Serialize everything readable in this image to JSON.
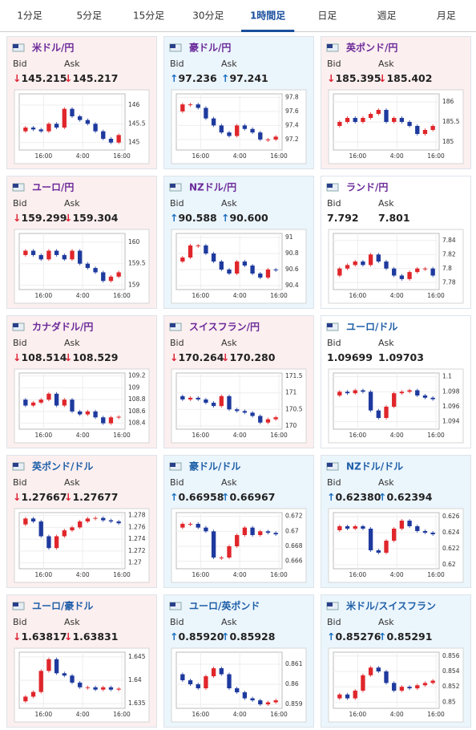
{
  "tabs": {
    "items": [
      "1分足",
      "5分足",
      "15分足",
      "30分足",
      "1時間足",
      "日足",
      "週足",
      "月足"
    ],
    "active": 4
  },
  "labels": {
    "bid": "Bid",
    "ask": "Ask",
    "xlabels": [
      "16:00",
      "4:00",
      "16:00"
    ]
  },
  "cards": [
    {
      "name": "米ドル/円",
      "bid": "145.215",
      "ask": "145.217",
      "trend": "down",
      "group": "yen",
      "ylim": [
        144.8,
        146.3
      ],
      "yticks": [
        145,
        145.5,
        146
      ],
      "values": [
        145.3,
        145.4,
        145.35,
        145.3,
        145.5,
        145.4,
        145.9,
        145.7,
        145.6,
        145.5,
        145.3,
        145.1,
        145.0,
        145.2
      ]
    },
    {
      "name": "豪ドル/円",
      "bid": "97.236",
      "ask": "97.241",
      "trend": "up",
      "group": "yen",
      "ylim": [
        97.05,
        97.85
      ],
      "yticks": [
        97.2,
        97.4,
        97.6,
        97.8
      ],
      "values": [
        97.6,
        97.7,
        97.7,
        97.65,
        97.5,
        97.4,
        97.3,
        97.25,
        97.4,
        97.35,
        97.3,
        97.2,
        97.2,
        97.24
      ]
    },
    {
      "name": "英ポンド/円",
      "bid": "185.395",
      "ask": "185.402",
      "trend": "down",
      "group": "yen",
      "ylim": [
        184.8,
        186.2
      ],
      "yticks": [
        185,
        185.5,
        186
      ],
      "values": [
        185.4,
        185.5,
        185.6,
        185.5,
        185.6,
        185.7,
        185.8,
        185.5,
        185.6,
        185.5,
        185.4,
        185.2,
        185.3,
        185.4
      ]
    },
    {
      "name": "ユーロ/円",
      "bid": "159.299",
      "ask": "159.304",
      "trend": "down",
      "group": "yen",
      "ylim": [
        158.9,
        160.2
      ],
      "yticks": [
        159,
        159.5,
        160
      ],
      "values": [
        159.7,
        159.8,
        159.7,
        159.6,
        159.8,
        159.7,
        159.6,
        159.8,
        159.5,
        159.4,
        159.3,
        159.1,
        159.2,
        159.3
      ]
    },
    {
      "name": "NZドル/円",
      "bid": "90.588",
      "ask": "90.600",
      "trend": "up",
      "group": "yen",
      "ylim": [
        90.35,
        91.05
      ],
      "yticks": [
        90.4,
        90.6,
        90.8,
        91
      ],
      "values": [
        90.7,
        90.75,
        90.9,
        90.9,
        90.8,
        90.7,
        90.6,
        90.55,
        90.7,
        90.65,
        90.55,
        90.5,
        90.6,
        90.59
      ]
    },
    {
      "name": "ランド/円",
      "bid": "7.792",
      "ask": "7.801",
      "trend": null,
      "group": "yen",
      "ylim": [
        7.77,
        7.85
      ],
      "yticks": [
        7.78,
        7.8,
        7.82,
        7.84
      ],
      "values": [
        7.79,
        7.8,
        7.805,
        7.81,
        7.805,
        7.82,
        7.81,
        7.8,
        7.79,
        7.785,
        7.795,
        7.8,
        7.8,
        7.79
      ]
    },
    {
      "name": "カナダドル/円",
      "bid": "108.514",
      "ask": "108.529",
      "trend": "down",
      "group": "yen",
      "ylim": [
        108.3,
        109.25
      ],
      "yticks": [
        108.4,
        108.6,
        108.8,
        109,
        109.2
      ],
      "values": [
        108.8,
        108.7,
        108.75,
        108.8,
        108.9,
        108.7,
        108.8,
        108.6,
        108.55,
        108.6,
        108.5,
        108.4,
        108.5,
        108.51
      ]
    },
    {
      "name": "スイスフラン/円",
      "bid": "170.264",
      "ask": "170.280",
      "trend": "down",
      "group": "yen",
      "ylim": [
        169.9,
        171.6
      ],
      "yticks": [
        170,
        170.5,
        171,
        171.5
      ],
      "values": [
        170.9,
        170.8,
        170.85,
        170.8,
        170.7,
        170.6,
        170.9,
        170.5,
        170.45,
        170.4,
        170.3,
        170.1,
        170.2,
        170.26
      ]
    },
    {
      "name": "ユーロ/ドル",
      "bid": "1.09699",
      "ask": "1.09703",
      "trend": null,
      "group": "usd",
      "ylim": [
        1.093,
        1.1005
      ],
      "yticks": [
        1.094,
        1.096,
        1.098,
        1.1
      ],
      "values": [
        1.0975,
        1.098,
        1.0978,
        1.0982,
        1.098,
        1.0955,
        1.0945,
        1.096,
        1.0978,
        1.098,
        1.0982,
        1.0975,
        1.0972,
        1.097
      ]
    },
    {
      "name": "英ポンド/ドル",
      "bid": "1.27667",
      "ask": "1.27677",
      "trend": "down",
      "group": "usd",
      "ylim": [
        1.269,
        1.2785
      ],
      "yticks": [
        1.27,
        1.272,
        1.274,
        1.276,
        1.278
      ],
      "values": [
        1.2765,
        1.2775,
        1.277,
        1.2745,
        1.2725,
        1.2745,
        1.2755,
        1.276,
        1.277,
        1.2775,
        1.2776,
        1.2772,
        1.277,
        1.2767
      ]
    },
    {
      "name": "豪ドル/ドル",
      "bid": "0.66958",
      "ask": "0.66967",
      "trend": "up",
      "group": "usd",
      "ylim": [
        0.665,
        0.6725
      ],
      "yticks": [
        0.666,
        0.668,
        0.67,
        0.672
      ],
      "values": [
        0.6705,
        0.671,
        0.671,
        0.6705,
        0.67,
        0.6665,
        0.6665,
        0.668,
        0.6695,
        0.6705,
        0.6695,
        0.67,
        0.6698,
        0.6696
      ]
    },
    {
      "name": "NZドル/ドル",
      "bid": "0.62380",
      "ask": "0.62394",
      "trend": "up",
      "group": "usd",
      "ylim": [
        0.6195,
        0.6265
      ],
      "yticks": [
        0.62,
        0.622,
        0.624,
        0.626
      ],
      "values": [
        0.6243,
        0.6248,
        0.6245,
        0.6248,
        0.6245,
        0.6218,
        0.6215,
        0.623,
        0.6245,
        0.6255,
        0.6248,
        0.6242,
        0.624,
        0.6238
      ]
    },
    {
      "name": "ユーロ/豪ドル",
      "bid": "1.63817",
      "ask": "1.63831",
      "trend": "down",
      "group": "usd",
      "ylim": [
        1.634,
        1.646
      ],
      "yticks": [
        1.635,
        1.64,
        1.645
      ],
      "values": [
        1.6355,
        1.6365,
        1.6375,
        1.642,
        1.6445,
        1.6415,
        1.641,
        1.6395,
        1.6385,
        1.6385,
        1.638,
        1.6385,
        1.638,
        1.6382
      ]
    },
    {
      "name": "ユーロ/英ポンド",
      "bid": "0.85920",
      "ask": "0.85928",
      "trend": "up",
      "group": "usd",
      "ylim": [
        0.8588,
        0.8616
      ],
      "yticks": [
        0.859,
        0.86,
        0.861
      ],
      "values": [
        0.8605,
        0.8602,
        0.86,
        0.8598,
        0.8604,
        0.8608,
        0.8605,
        0.8598,
        0.8596,
        0.8593,
        0.8592,
        0.859,
        0.8591,
        0.8592
      ]
    },
    {
      "name": "米ドル/スイスフラン",
      "bid": "0.85276",
      "ask": "0.85291",
      "trend": "up",
      "group": "usd",
      "ylim": [
        0.8492,
        0.8565
      ],
      "yticks": [
        0.85,
        0.852,
        0.854,
        0.856
      ],
      "values": [
        0.8505,
        0.851,
        0.8505,
        0.8515,
        0.8535,
        0.8545,
        0.854,
        0.8525,
        0.8515,
        0.852,
        0.8518,
        0.8522,
        0.8525,
        0.8528
      ]
    }
  ]
}
